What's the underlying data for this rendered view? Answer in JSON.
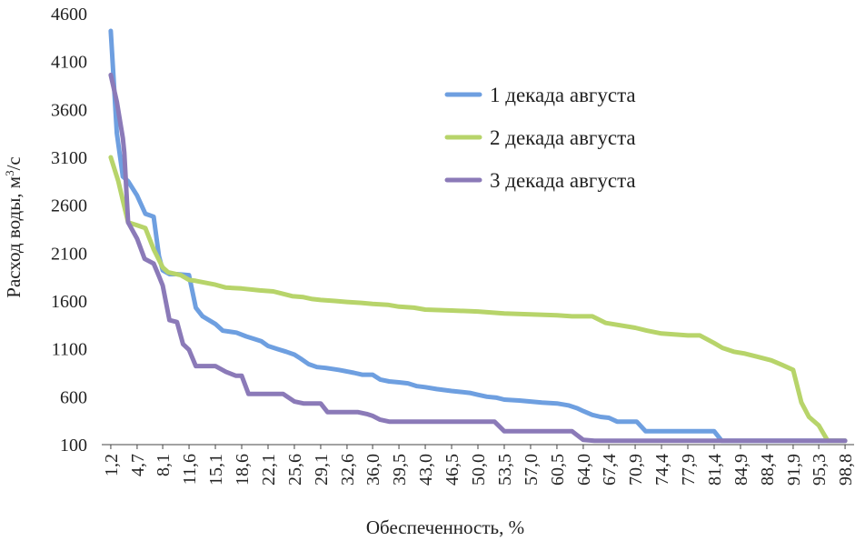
{
  "chart_data": {
    "type": "line",
    "xlabel": "Обеспеченность, %",
    "ylabel": "Расход воды, м",
    "ylabel_superscript": "3",
    "ylabel_unit_tail": "/с",
    "ylim": [
      100,
      4600
    ],
    "yticks": [
      100,
      600,
      1100,
      1600,
      2100,
      2600,
      3100,
      3600,
      4100,
      4600
    ],
    "xlim": [
      0,
      100
    ],
    "xticks": [
      "1,2",
      "4,7",
      "8,1",
      "11,6",
      "15,1",
      "18,6",
      "22,1",
      "25,6",
      "29,1",
      "32,6",
      "36,0",
      "39,5",
      "43,0",
      "46,5",
      "50,0",
      "53,5",
      "57,0",
      "60,5",
      "64,0",
      "67,4",
      "70,9",
      "74,4",
      "77,9",
      "81,4",
      "84,9",
      "88,4",
      "91,9",
      "95,3",
      "98,8"
    ],
    "xtick_values": [
      1.2,
      4.7,
      8.1,
      11.6,
      15.1,
      18.6,
      22.1,
      25.6,
      29.1,
      32.6,
      36.0,
      39.5,
      43.0,
      46.5,
      50.0,
      53.5,
      57.0,
      60.5,
      64.0,
      67.4,
      70.9,
      74.4,
      77.9,
      81.4,
      84.9,
      88.4,
      91.9,
      95.3,
      98.8
    ],
    "legend_position": "upper-right inside plot",
    "series": [
      {
        "name": "1 декада августа",
        "color": "#6e9fe0",
        "x": [
          1.2,
          2.0,
          2.8,
          3.5,
          4.7,
          5.8,
          6.9,
          7.6,
          8.1,
          9.0,
          10.0,
          11.6,
          12.5,
          13.4,
          15.1,
          16.1,
          17.9,
          19.2,
          20.4,
          21.2,
          22.1,
          23.3,
          24.5,
          25.6,
          26.4,
          27.5,
          28.6,
          29.8,
          31.5,
          33.5,
          34.6,
          36.0,
          37.0,
          38.2,
          39.5,
          40.7,
          41.9,
          43.0,
          44.5,
          46.5,
          47.8,
          48.9,
          50.0,
          51.2,
          52.5,
          53.5,
          55.5,
          57.0,
          58.5,
          60.5,
          62.0,
          63.2,
          64.0,
          65.2,
          66.3,
          67.4,
          68.5,
          70.9,
          71.1,
          72.3,
          72.6,
          74.4,
          77.9,
          81.4,
          82.4,
          84.9,
          88.4,
          91.9,
          95.3,
          98.8
        ],
        "values": [
          4420,
          3350,
          2900,
          2850,
          2700,
          2510,
          2480,
          2070,
          1920,
          1880,
          1880,
          1870,
          1530,
          1440,
          1360,
          1290,
          1270,
          1230,
          1200,
          1180,
          1130,
          1100,
          1070,
          1040,
          1000,
          940,
          910,
          900,
          880,
          850,
          830,
          830,
          780,
          760,
          750,
          740,
          710,
          700,
          680,
          660,
          650,
          640,
          620,
          600,
          590,
          570,
          560,
          550,
          540,
          530,
          510,
          480,
          450,
          410,
          390,
          380,
          340,
          340,
          340,
          240,
          240,
          240,
          240,
          240,
          140,
          140,
          140,
          140,
          140,
          140
        ]
      },
      {
        "name": "2 декада августа",
        "color": "#b7d46a",
        "x": [
          1.2,
          2.2,
          2.8,
          3.5,
          4.7,
          5.8,
          6.9,
          8.1,
          8.8,
          10.5,
          11.6,
          12.5,
          15.1,
          16.5,
          18.6,
          21.0,
          22.8,
          23.8,
          25.3,
          26.8,
          28.0,
          29.1,
          31.0,
          32.6,
          34.5,
          36.0,
          38.0,
          39.5,
          41.5,
          43.0,
          46.5,
          50.0,
          53.5,
          57.0,
          60.5,
          62.5,
          64.0,
          65.2,
          67.0,
          70.9,
          72.5,
          74.4,
          77.9,
          79.5,
          81.4,
          82.5,
          84.0,
          85.5,
          87.0,
          89.0,
          90.5,
          91.9,
          93.0,
          94.0,
          95.3,
          96.5,
          98.8
        ],
        "values": [
          3100,
          2850,
          2650,
          2420,
          2390,
          2360,
          2140,
          1950,
          1900,
          1870,
          1820,
          1810,
          1770,
          1740,
          1730,
          1710,
          1700,
          1680,
          1650,
          1640,
          1620,
          1610,
          1600,
          1590,
          1580,
          1570,
          1560,
          1540,
          1530,
          1510,
          1500,
          1490,
          1470,
          1460,
          1450,
          1440,
          1440,
          1440,
          1370,
          1320,
          1290,
          1260,
          1240,
          1240,
          1160,
          1110,
          1070,
          1050,
          1020,
          980,
          930,
          880,
          540,
          390,
          300,
          140,
          140
        ]
      },
      {
        "name": "3 декада августа",
        "color": "#8b7ab8",
        "x": [
          1.2,
          2.0,
          2.8,
          3.0,
          3.5,
          4.7,
          5.7,
          6.9,
          7.6,
          8.1,
          9.0,
          10.0,
          10.8,
          11.6,
          12.5,
          15.1,
          16.5,
          17.8,
          18.6,
          19.5,
          20.6,
          22.1,
          24.1,
          25.6,
          26.8,
          28.0,
          29.1,
          30.0,
          31.5,
          32.6,
          34.0,
          35.2,
          36.0,
          37.0,
          38.2,
          39.5,
          43.0,
          46.5,
          50.0,
          52.2,
          53.5,
          57.0,
          60.5,
          62.5,
          64.0,
          65.5,
          67.4,
          70.9,
          74.4,
          77.9,
          81.4,
          84.9,
          88.4,
          91.9,
          95.3,
          98.8
        ],
        "values": [
          3960,
          3680,
          3300,
          3150,
          2420,
          2250,
          2040,
          1990,
          1860,
          1760,
          1400,
          1380,
          1150,
          1090,
          920,
          920,
          860,
          820,
          820,
          630,
          630,
          630,
          630,
          550,
          530,
          530,
          530,
          440,
          440,
          440,
          440,
          420,
          400,
          360,
          340,
          340,
          340,
          340,
          340,
          340,
          240,
          240,
          240,
          240,
          150,
          140,
          140,
          140,
          140,
          140,
          140,
          140,
          140,
          140,
          140,
          140
        ]
      }
    ]
  }
}
